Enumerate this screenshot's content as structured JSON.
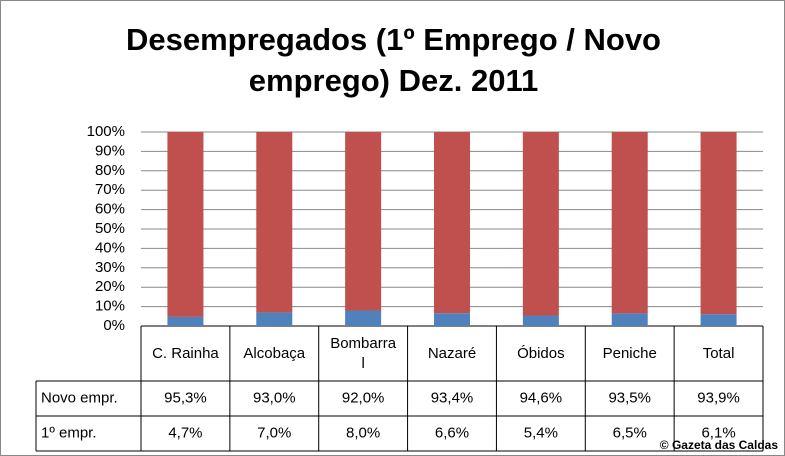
{
  "chart_data": {
    "type": "stacked-bar-percent",
    "title": "Desempregados (1º Emprego / Novo emprego) Dez. 2011",
    "categories": [
      "C. Rainha",
      "Alcobaça",
      "Bombarral",
      "Nazaré",
      "Óbidos",
      "Peniche",
      "Total"
    ],
    "series": [
      {
        "name": "Novo empr.",
        "color": "#c0504d",
        "values": [
          95.3,
          93.0,
          92.0,
          93.4,
          94.6,
          93.5,
          93.9
        ],
        "value_labels": [
          "95,3%",
          "93,0%",
          "92,0%",
          "93,4%",
          "94,6%",
          "93,5%",
          "93,9%"
        ]
      },
      {
        "name": "1º empr.",
        "color": "#4f81bd",
        "values": [
          4.7,
          7.0,
          8.0,
          6.6,
          5.4,
          6.5,
          6.1
        ],
        "value_labels": [
          "4,7%",
          "7,0%",
          "8,0%",
          "6,6%",
          "5,4%",
          "6,5%",
          "6,1%"
        ]
      }
    ],
    "ylim": [
      0,
      100
    ],
    "yticks": [
      {
        "value": 0,
        "label": "0%"
      },
      {
        "value": 10,
        "label": "10%"
      },
      {
        "value": 20,
        "label": "20%"
      },
      {
        "value": 30,
        "label": "30%"
      },
      {
        "value": 40,
        "label": "40%"
      },
      {
        "value": 50,
        "label": "50%"
      },
      {
        "value": 60,
        "label": "60%"
      },
      {
        "value": 70,
        "label": "70%"
      },
      {
        "value": 80,
        "label": "80%"
      },
      {
        "value": 90,
        "label": "90%"
      },
      {
        "value": 100,
        "label": "100%"
      }
    ],
    "grid": true,
    "watermark": "© Gazeta das Caldas"
  }
}
